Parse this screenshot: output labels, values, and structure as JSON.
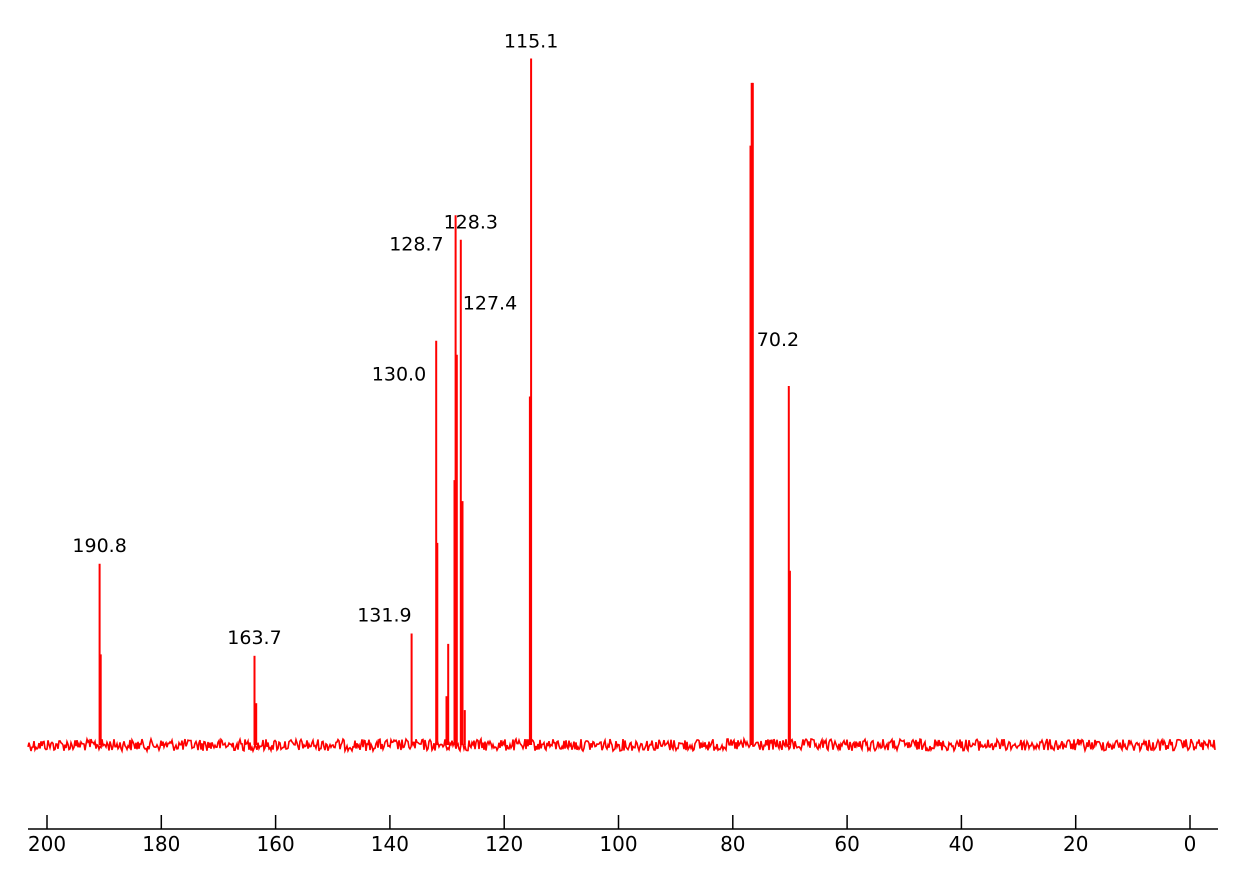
{
  "chart_data": {
    "type": "line",
    "title": "",
    "xlabel": "",
    "ylabel": "",
    "x_reversed": true,
    "xlim": [
      200,
      -4.5
    ],
    "ylim": [
      0,
      100
    ],
    "grid": false,
    "legend": "none",
    "x_ticks": [
      200,
      180,
      160,
      140,
      120,
      100,
      80,
      60,
      40,
      20,
      0
    ],
    "x_tick_labels": [
      "200",
      "180",
      "160",
      "140",
      "120",
      "100",
      "80",
      "60",
      "40",
      "20",
      "0"
    ],
    "peaks": [
      {
        "x": 190.8,
        "height": 26.0,
        "label": "190.8"
      },
      {
        "x": 190.6,
        "height": 13.0
      },
      {
        "x": 163.7,
        "height": 12.8,
        "label": "163.7"
      },
      {
        "x": 163.4,
        "height": 6.0
      },
      {
        "x": 136.2,
        "height": 16.0,
        "label": "131.9"
      },
      {
        "x": 131.9,
        "height": 58.0,
        "label": "130.0"
      },
      {
        "x": 131.7,
        "height": 29.0
      },
      {
        "x": 129.8,
        "height": 14.5
      },
      {
        "x": 130.1,
        "height": 7.0
      },
      {
        "x": 128.7,
        "height": 38.0
      },
      {
        "x": 128.5,
        "height": 76.0,
        "label": "128.7"
      },
      {
        "x": 128.3,
        "height": 56.0
      },
      {
        "x": 127.6,
        "height": 72.5,
        "label": "128.3"
      },
      {
        "x": 127.3,
        "height": 35.0
      },
      {
        "x": 126.9,
        "height": 5.0
      },
      {
        "x": 115.3,
        "height": 98.5,
        "label": "115.1"
      },
      {
        "x": 115.5,
        "height": 50.0
      },
      {
        "x": 76.9,
        "height": 86.0
      },
      {
        "x": 76.7,
        "height": 95.0
      },
      {
        "x": 76.5,
        "height": 95.0
      },
      {
        "x": 70.2,
        "height": 51.5,
        "label": "70.2"
      },
      {
        "x": 70.0,
        "height": 25.0
      }
    ],
    "labels": [
      {
        "text": "190.8",
        "x": 190.8,
        "height": 26.0
      },
      {
        "text": "163.7",
        "x": 163.7,
        "height": 12.8
      },
      {
        "text": "131.9",
        "x": 136.2,
        "height": 16.0
      },
      {
        "text": "130.0",
        "x": 131.9,
        "height": 58.0
      },
      {
        "text": "128.7",
        "x": 128.5,
        "height": 76.0
      },
      {
        "text": "128.3",
        "x": 127.6,
        "height": 72.5
      },
      {
        "text": "127.4",
        "x": 127.6,
        "height": 72.5
      },
      {
        "text": "115.1",
        "x": 115.3,
        "height": 98.5
      },
      {
        "text": "70.2",
        "x": 70.2,
        "height": 51.5
      }
    ],
    "series": [
      {
        "values_are": "noise baseline",
        "color": "#ff0000"
      }
    ]
  },
  "colors": {
    "spectrum": "#ff0000",
    "axis": "#000000",
    "background": "#ffffff"
  }
}
